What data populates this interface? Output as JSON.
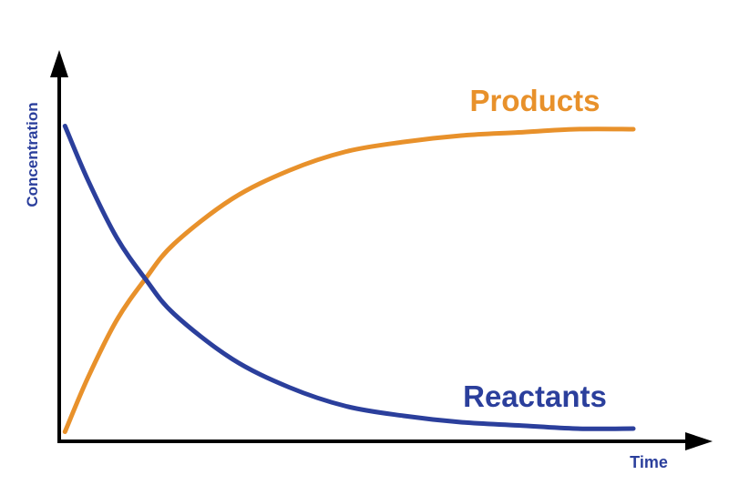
{
  "chart_data": {
    "type": "line",
    "xlabel": "Time",
    "ylabel": "Concentration",
    "x": [
      0.1,
      0.5,
      1,
      1.5,
      2,
      3,
      4,
      5,
      6,
      7,
      8,
      9,
      10
    ],
    "series": [
      {
        "name": "Products",
        "color": "#e8912b",
        "values": [
          3,
          20,
          38,
          51,
          62,
          76,
          85,
          91,
          94,
          96,
          97,
          98,
          98
        ]
      },
      {
        "name": "Reactants",
        "color": "#2b3f9c",
        "values": [
          99,
          82,
          64,
          51,
          40,
          26,
          17,
          11,
          8,
          6,
          5,
          4,
          4
        ]
      }
    ],
    "xlim": [
      0,
      10
    ],
    "ylim": [
      0,
      100
    ]
  }
}
